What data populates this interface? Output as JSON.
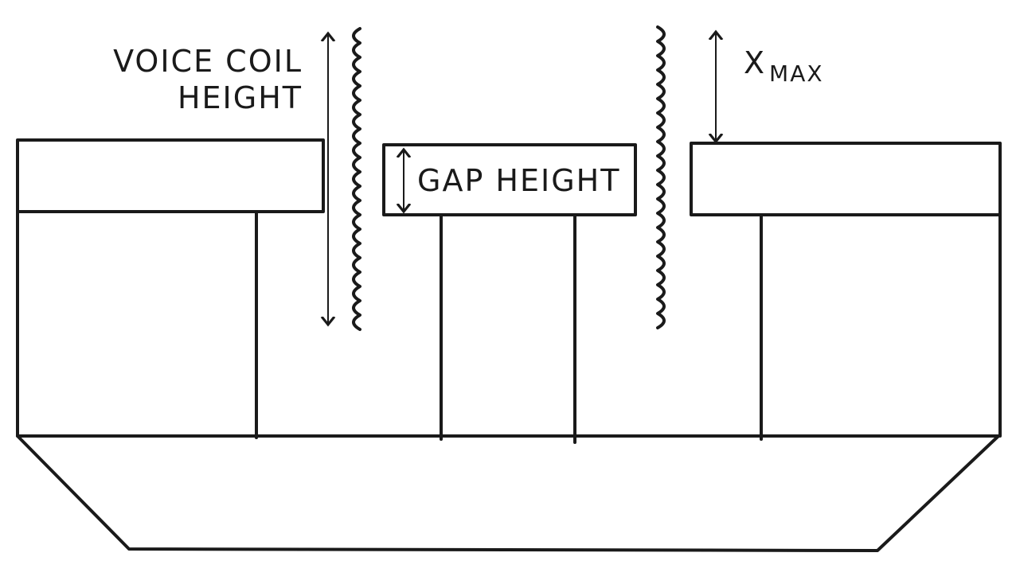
{
  "labels": {
    "voice_coil_line1": "VOICE COIL",
    "voice_coil_line2": "HEIGHT",
    "gap_height": "GAP HEIGHT",
    "xmax_x": "X",
    "xmax_sub": "MAX"
  },
  "colors": {
    "ink": "#1a1a1a",
    "paper": "#ffffff"
  }
}
